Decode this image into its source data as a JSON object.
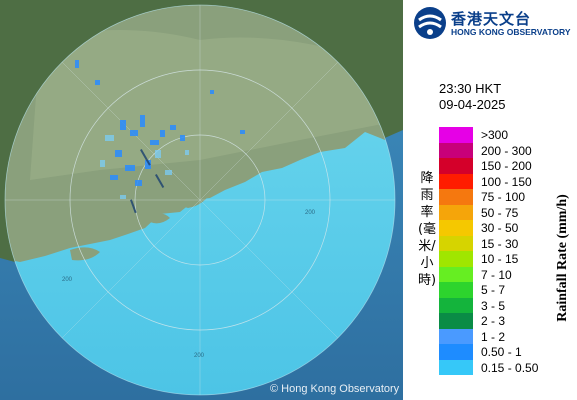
{
  "map": {
    "range_ring_labels": [
      "200",
      "200",
      "200"
    ],
    "copyright": "© Hong Kong Observatory"
  },
  "header": {
    "org_name_cn": "香港天文台",
    "org_name_en": "HONG KONG OBSERVATORY"
  },
  "timestamp": {
    "time": "23:30 HKT",
    "date": "09-04-2025"
  },
  "legend": {
    "title_cn": "降雨率(毫米/小時)",
    "title_en": "Rainfall Rate (mm/h)",
    "items": [
      {
        "label": ">300",
        "color": "#e600e6"
      },
      {
        "label": "200 - 300",
        "color": "#c8007a"
      },
      {
        "label": "150 - 200",
        "color": "#d4002a"
      },
      {
        "label": "100 - 150",
        "color": "#ff1c00"
      },
      {
        "label": "75 - 100",
        "color": "#f5780f"
      },
      {
        "label": "50 - 75",
        "color": "#f5a50a"
      },
      {
        "label": "30 - 50",
        "color": "#f5c800"
      },
      {
        "label": "15 - 30",
        "color": "#d6d400"
      },
      {
        "label": "10 - 15",
        "color": "#a0e600"
      },
      {
        "label": "7 - 10",
        "color": "#66ee22"
      },
      {
        "label": "5 - 7",
        "color": "#2dd42d"
      },
      {
        "label": "3 - 5",
        "color": "#14b43c"
      },
      {
        "label": "2 - 3",
        "color": "#0a8c46"
      },
      {
        "label": "1 - 2",
        "color": "#4a9aff"
      },
      {
        "label": "0.50 - 1",
        "color": "#1e8cff"
      },
      {
        "label": "0.15 - 0.50",
        "color": "#36c8f8"
      }
    ]
  }
}
